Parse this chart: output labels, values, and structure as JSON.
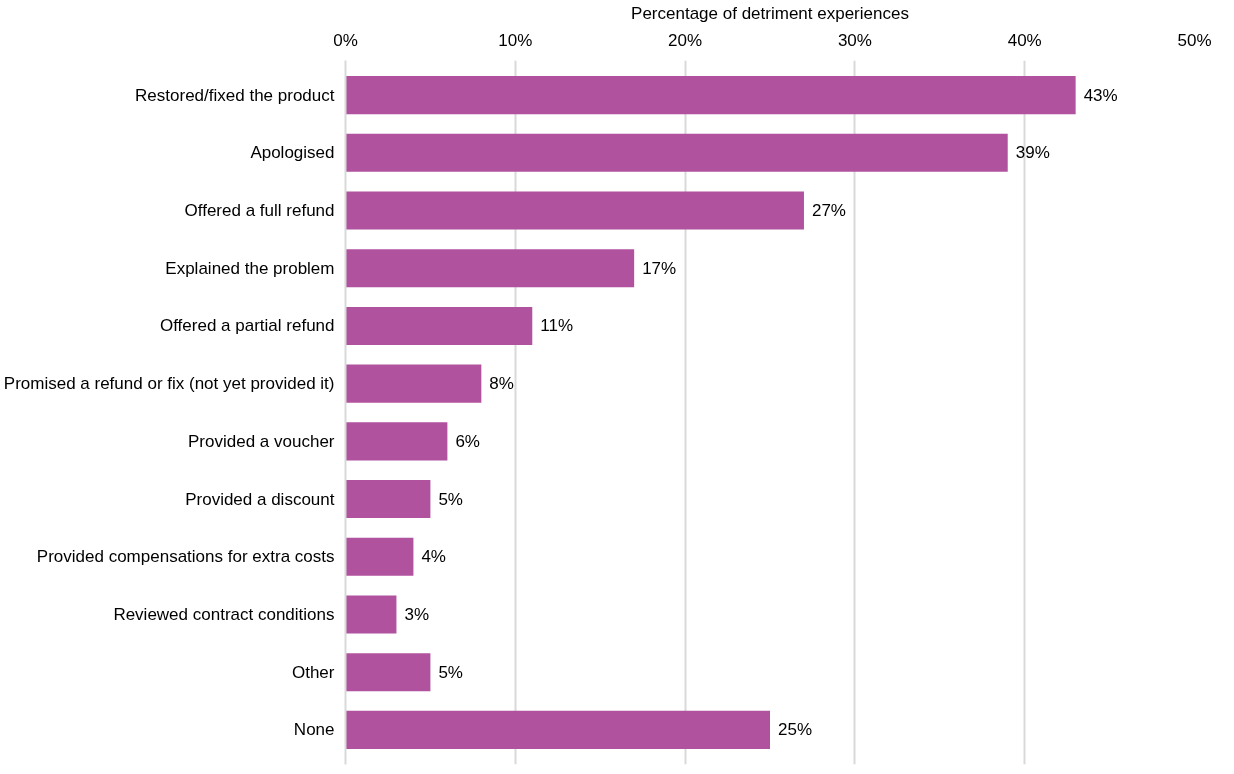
{
  "chart_data": {
    "type": "bar",
    "orientation": "horizontal",
    "xlabel": "Percentage of detriment experiences",
    "categories": [
      "Restored/fixed the product",
      "Apologised",
      "Offered a full refund",
      "Explained the problem",
      "Offered a partial refund",
      "Promised a refund or fix (not yet provided it)",
      "Provided a voucher",
      "Provided a discount",
      "Provided compensations for extra costs",
      "Reviewed contract conditions",
      "Other",
      "None"
    ],
    "values": [
      43,
      39,
      27,
      17,
      11,
      8,
      6,
      5,
      4,
      3,
      5,
      25
    ],
    "value_labels": [
      "43%",
      "39%",
      "27%",
      "17%",
      "11%",
      "8%",
      "6%",
      "5%",
      "4%",
      "3%",
      "5%",
      "25%"
    ],
    "color": "#b0529e",
    "xlim": [
      0,
      50
    ],
    "xticks": [
      {
        "value": 0,
        "label": "0%"
      },
      {
        "value": 10,
        "label": "10%"
      },
      {
        "value": 20,
        "label": "20%"
      },
      {
        "value": 30,
        "label": "30%"
      },
      {
        "value": 40,
        "label": "40%"
      },
      {
        "value": 50,
        "label": "50%"
      }
    ],
    "grid": "x"
  }
}
